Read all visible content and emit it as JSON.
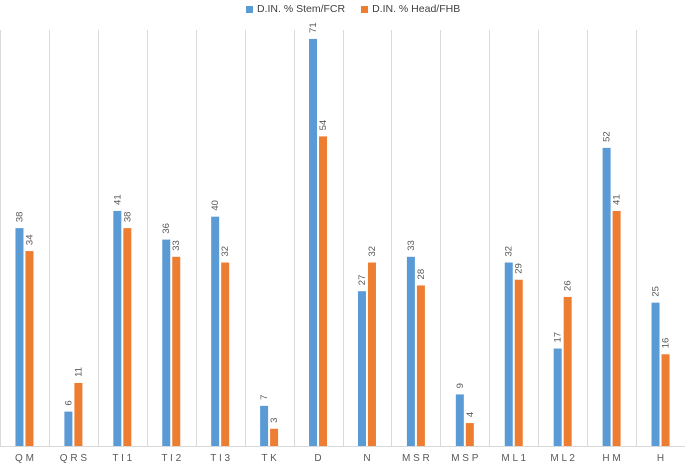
{
  "chart_data": {
    "type": "bar",
    "categories": [
      "Q M",
      "Q R S",
      "T I 1",
      "T I 2",
      "T I 3",
      "T K",
      "D",
      "N",
      "M S R",
      "M S P",
      "M L 1",
      "M L 2",
      "H M",
      "H"
    ],
    "series": [
      {
        "name": "D.IN. % Stem/FCR",
        "color": "#5B9BD5",
        "values": [
          38,
          6,
          41,
          36,
          40,
          7,
          71,
          27,
          33,
          9,
          32,
          17,
          52,
          25
        ]
      },
      {
        "name": "D.IN. % Head/FHB",
        "color": "#ED7D31",
        "values": [
          34,
          11,
          38,
          33,
          32,
          3,
          54,
          32,
          28,
          4,
          29,
          26,
          41,
          16
        ]
      }
    ],
    "title": "",
    "xlabel": "",
    "ylabel": "",
    "ylim": [
      0,
      75
    ],
    "grid": "vertical separators between categories",
    "legend": "top-center",
    "data_labels": true
  }
}
